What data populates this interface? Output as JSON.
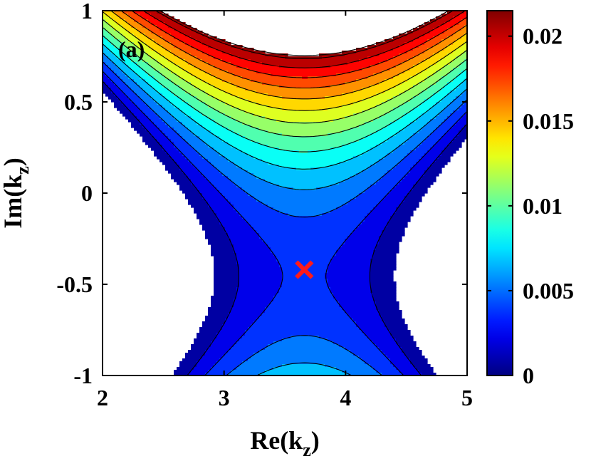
{
  "chart_data": {
    "type": "contour",
    "panel_label": "(a)",
    "xlabel": {
      "main": "Re(k",
      "sub": "z",
      "close": ")"
    },
    "ylabel": {
      "main": "Im(k",
      "sub": "z",
      "close": ")"
    },
    "xlim": [
      2,
      5
    ],
    "ylim": [
      -1,
      1
    ],
    "x_ticks": [
      2,
      3,
      4,
      5
    ],
    "x_tick_labels": [
      "2",
      "3",
      "4",
      "5"
    ],
    "y_ticks": [
      -1,
      -0.5,
      0,
      0.5,
      1
    ],
    "y_tick_labels": [
      "-1",
      "-0.5",
      "0",
      "0.5",
      "1"
    ],
    "colorbar": {
      "range": [
        0,
        0.0215
      ],
      "colormap": "jet",
      "ticks": [
        0,
        0.005,
        0.01,
        0.015,
        0.02
      ],
      "tick_labels": [
        "0",
        "0.005",
        "0.01",
        "0.015",
        "0.02"
      ]
    },
    "contour_levels": [
      0.0015,
      0.003,
      0.0045,
      0.006,
      0.0075,
      0.009,
      0.0105,
      0.012,
      0.0135,
      0.015,
      0.0165,
      0.018,
      0.0195,
      0.021
    ],
    "saddle_point": {
      "x": 3.66,
      "y": -0.42
    },
    "marker": {
      "x": 3.66,
      "y": -0.42,
      "symbol": "x",
      "color": "#ff1a1a"
    },
    "masked_region": "blank (white) region where values exceed the displayed range on the left and right"
  }
}
